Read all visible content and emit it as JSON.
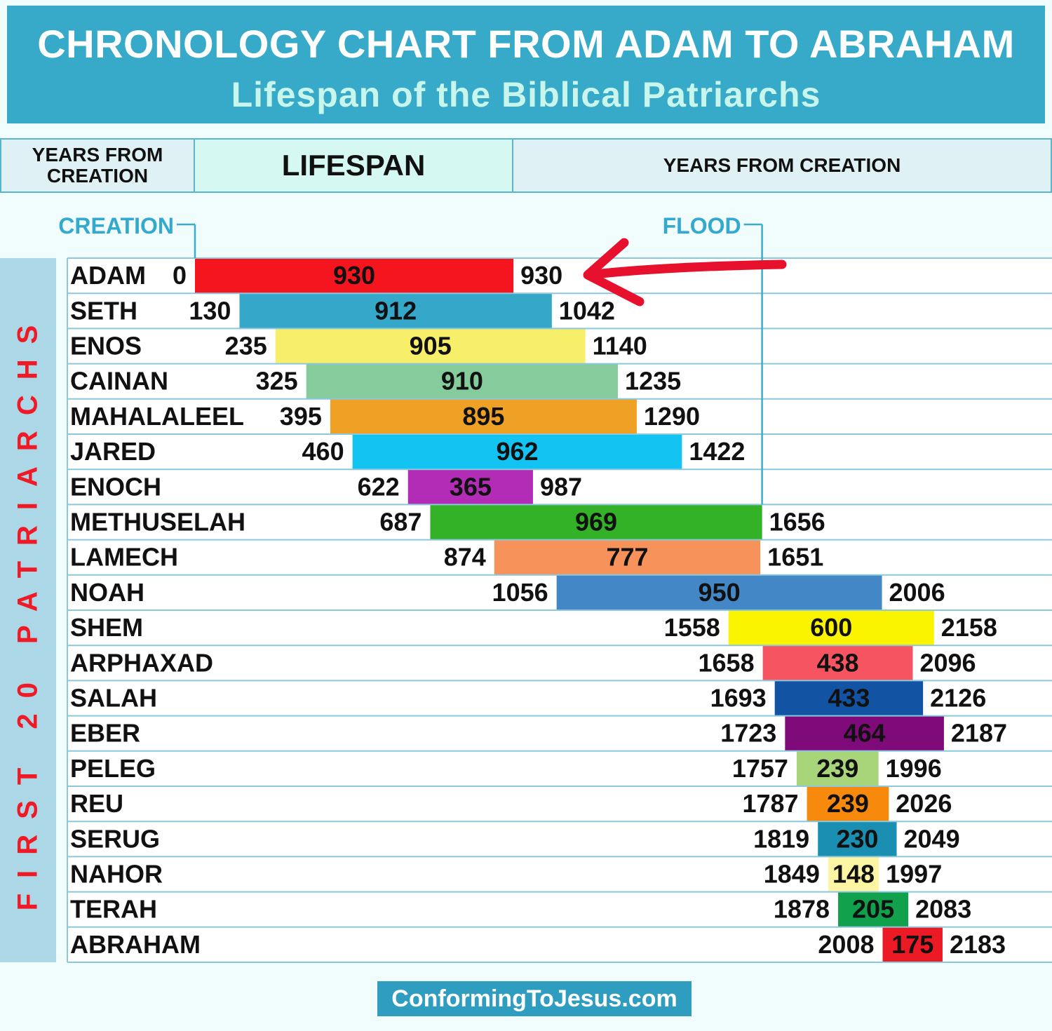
{
  "header": {
    "title": "CHRONOLOGY CHART FROM ADAM TO ABRAHAM",
    "subtitle": "Lifespan of the Biblical Patriarchs"
  },
  "columns": {
    "left_line1": "YEARS FROM",
    "left_line2": "CREATION",
    "middle": "LIFESPAN",
    "right": "YEARS FROM CREATION"
  },
  "side_label": "FIRST 20 PATRIARCHS",
  "footer": {
    "credit": "ConformingToJesus.com"
  },
  "chart_data": {
    "type": "bar",
    "title": "CHRONOLOGY CHART FROM ADAM TO ABRAHAM",
    "subtitle": "Lifespan of the Biblical Patriarchs",
    "markers": [
      {
        "label": "CREATION",
        "year": 0
      },
      {
        "label": "FLOOD",
        "year": 1656
      }
    ],
    "annotation": {
      "type": "arrow",
      "target": "ADAM",
      "color": "#e8112d"
    },
    "patriarchs": [
      {
        "name": "ADAM",
        "birth": 0,
        "lifespan": 930,
        "death": 930,
        "color": "#f5151f"
      },
      {
        "name": "SETH",
        "birth": 130,
        "lifespan": 912,
        "death": 1042,
        "color": "#35a7c9"
      },
      {
        "name": "ENOS",
        "birth": 235,
        "lifespan": 905,
        "death": 1140,
        "color": "#f7ee6a"
      },
      {
        "name": "CAINAN",
        "birth": 325,
        "lifespan": 910,
        "death": 1235,
        "color": "#85cb9b"
      },
      {
        "name": "MAHALALEEL",
        "birth": 395,
        "lifespan": 895,
        "death": 1290,
        "color": "#efa126"
      },
      {
        "name": "JARED",
        "birth": 460,
        "lifespan": 962,
        "death": 1422,
        "color": "#13c3f1"
      },
      {
        "name": "ENOCH",
        "birth": 622,
        "lifespan": 365,
        "death": 987,
        "color": "#b32cb6"
      },
      {
        "name": "METHUSELAH",
        "birth": 687,
        "lifespan": 969,
        "death": 1656,
        "color": "#33b227"
      },
      {
        "name": "LAMECH",
        "birth": 874,
        "lifespan": 777,
        "death": 1651,
        "color": "#f7935a"
      },
      {
        "name": "NOAH",
        "birth": 1056,
        "lifespan": 950,
        "death": 2006,
        "color": "#4387c7"
      },
      {
        "name": "SHEM",
        "birth": 1558,
        "lifespan": 600,
        "death": 2158,
        "color": "#faf400"
      },
      {
        "name": "ARPHAXAD",
        "birth": 1658,
        "lifespan": 438,
        "death": 2096,
        "color": "#f65461"
      },
      {
        "name": "SALAH",
        "birth": 1693,
        "lifespan": 433,
        "death": 2126,
        "color": "#1253a4"
      },
      {
        "name": "EBER",
        "birth": 1723,
        "lifespan": 464,
        "death": 2187,
        "color": "#7f0a7a"
      },
      {
        "name": "PELEG",
        "birth": 1757,
        "lifespan": 239,
        "death": 1996,
        "color": "#a8d47a"
      },
      {
        "name": "REU",
        "birth": 1787,
        "lifespan": 239,
        "death": 2026,
        "color": "#f78a0c"
      },
      {
        "name": "SERUG",
        "birth": 1819,
        "lifespan": 230,
        "death": 2049,
        "color": "#1a8fb2"
      },
      {
        "name": "NAHOR",
        "birth": 1849,
        "lifespan": 148,
        "death": 1997,
        "color": "#fbf5a4"
      },
      {
        "name": "TERAH",
        "birth": 1878,
        "lifespan": 205,
        "death": 2083,
        "color": "#11a04b"
      },
      {
        "name": "ABRAHAM",
        "birth": 2008,
        "lifespan": 175,
        "death": 2183,
        "color": "#ec1a24"
      }
    ]
  }
}
